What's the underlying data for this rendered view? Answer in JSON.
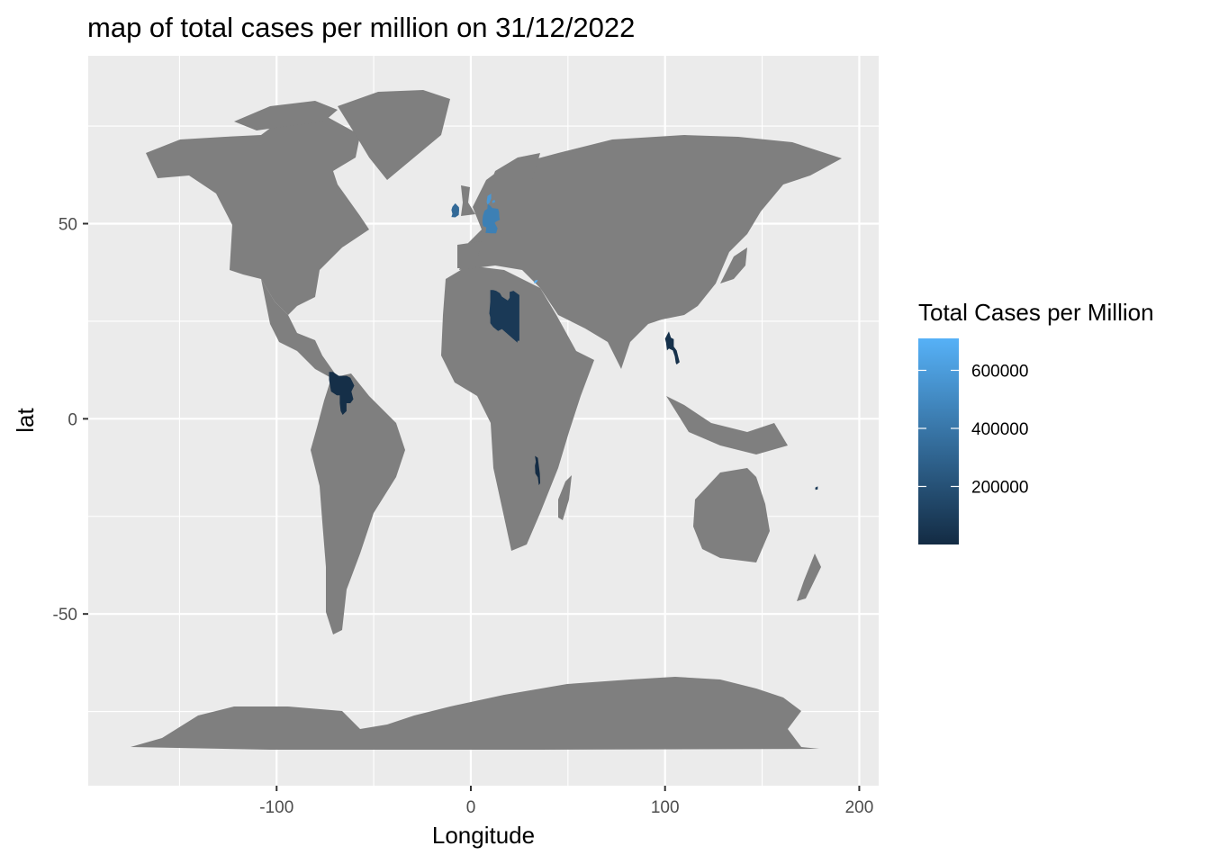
{
  "chart_data": {
    "type": "map",
    "title": "map of total cases per million on 31/12/2022",
    "xlabel": "Longitude",
    "ylabel": "lat",
    "xlim": [
      -197,
      210
    ],
    "ylim": [
      -94,
      93
    ],
    "x_ticks": [
      -100,
      0,
      100,
      200
    ],
    "x_tick_labels": [
      "-100",
      "0",
      "100",
      "200"
    ],
    "y_ticks": [
      50,
      0,
      -50
    ],
    "y_tick_labels": [
      "50",
      "0",
      "-50"
    ],
    "x_minor": [
      -150,
      -50,
      50,
      150
    ],
    "y_minor": [
      75,
      25,
      -25,
      -75
    ],
    "grid": true,
    "panel_background": "#ebebeb",
    "land_color": "#7f7f7f",
    "na_color": "#7f7f7f",
    "legend": {
      "title": "Total Cases per Million",
      "position": "right",
      "color_low": "#132b43",
      "color_high": "#56b1f7",
      "range": [
        0,
        710000
      ],
      "breaks": [
        600000,
        400000,
        200000
      ],
      "break_labels": [
        "600000",
        "400000",
        "200000"
      ]
    },
    "highlighted_regions": [
      {
        "name": "Venezuela",
        "value": 19000,
        "lon_lat": [
          [
            -73,
            12
          ],
          [
            -71,
            12
          ],
          [
            -68,
            11
          ],
          [
            -64,
            11
          ],
          [
            -62,
            10.5
          ],
          [
            -61,
            9.5
          ],
          [
            -60,
            8.5
          ],
          [
            -61.5,
            7
          ],
          [
            -61,
            6
          ],
          [
            -60.5,
            5
          ],
          [
            -62,
            4
          ],
          [
            -64,
            4
          ],
          [
            -64,
            2
          ],
          [
            -66,
            1
          ],
          [
            -67,
            2
          ],
          [
            -67.5,
            4
          ],
          [
            -67.5,
            6
          ],
          [
            -69,
            6
          ],
          [
            -72,
            7
          ],
          [
            -72.5,
            8.5
          ],
          [
            -73,
            10
          ]
        ]
      },
      {
        "name": "Libya",
        "value": 73000,
        "lon_lat": [
          [
            10,
            33
          ],
          [
            11.5,
            33
          ],
          [
            13,
            32.8
          ],
          [
            15,
            32.2
          ],
          [
            16,
            31.3
          ],
          [
            19,
            30.3
          ],
          [
            20,
            31
          ],
          [
            20,
            32.5
          ],
          [
            22,
            32.8
          ],
          [
            25,
            31.7
          ],
          [
            25,
            22
          ],
          [
            25,
            20
          ],
          [
            24,
            20
          ],
          [
            24,
            19.5
          ],
          [
            16,
            23
          ],
          [
            14,
            22.5
          ],
          [
            11.5,
            23.5
          ],
          [
            10,
            24.5
          ],
          [
            10,
            26
          ],
          [
            9.5,
            27
          ],
          [
            10,
            30
          ]
        ]
      },
      {
        "name": "Malawi",
        "value": 5500,
        "lon_lat": [
          [
            33,
            -9.5
          ],
          [
            34.5,
            -10
          ],
          [
            35,
            -12
          ],
          [
            35.5,
            -14
          ],
          [
            35.7,
            -16.5
          ],
          [
            35,
            -17
          ],
          [
            34.5,
            -15
          ],
          [
            33.2,
            -14
          ],
          [
            33,
            -12
          ],
          [
            33.5,
            -11
          ]
        ]
      },
      {
        "name": "Laos",
        "value": 30000,
        "lon_lat": [
          [
            101,
            21.5
          ],
          [
            102,
            22.4
          ],
          [
            103,
            20.8
          ],
          [
            104.5,
            20.4
          ],
          [
            104.5,
            18.5
          ],
          [
            106,
            17.5
          ],
          [
            107,
            15.5
          ],
          [
            107.5,
            14.5
          ],
          [
            106,
            13.9
          ],
          [
            105.5,
            14.3
          ],
          [
            105,
            16
          ],
          [
            104,
            17.5
          ],
          [
            102,
            18
          ],
          [
            101,
            17.5
          ],
          [
            100.5,
            19.5
          ],
          [
            100,
            20.5
          ]
        ]
      },
      {
        "name": "Ireland",
        "value": 330000,
        "lon_lat": [
          [
            -10,
            51.7
          ],
          [
            -8,
            51.6
          ],
          [
            -6.2,
            52.2
          ],
          [
            -6,
            53.5
          ],
          [
            -6.1,
            54.2
          ],
          [
            -8,
            55.2
          ],
          [
            -9.5,
            54.3
          ],
          [
            -10,
            53.5
          ],
          [
            -9.5,
            52.5
          ]
        ]
      },
      {
        "name": "Germany",
        "value": 450000,
        "lon_lat": [
          [
            6,
            51
          ],
          [
            6.2,
            52
          ],
          [
            7,
            53.3
          ],
          [
            8.5,
            53.8
          ],
          [
            8.7,
            55
          ],
          [
            10,
            54.6
          ],
          [
            11,
            54
          ],
          [
            14,
            53.8
          ],
          [
            14.5,
            53
          ],
          [
            14.7,
            51.5
          ],
          [
            15,
            51
          ],
          [
            13,
            50.5
          ],
          [
            12.3,
            50.2
          ],
          [
            13.8,
            48.8
          ],
          [
            13,
            47.5
          ],
          [
            10.5,
            47.5
          ],
          [
            8.5,
            47.6
          ],
          [
            7.6,
            47.6
          ],
          [
            8,
            49
          ],
          [
            6.3,
            49.4
          ],
          [
            6,
            50.2
          ]
        ]
      },
      {
        "name": "Denmark",
        "value": 580000,
        "lon_lat": [
          [
            8.1,
            55.5
          ],
          [
            8.6,
            57.1
          ],
          [
            10.5,
            57.7
          ],
          [
            10.5,
            56.5
          ],
          [
            9.6,
            55.3
          ],
          [
            8.6,
            54.9
          ]
        ]
      },
      {
        "name": "Sjaelland",
        "value": 580000,
        "lon_lat": [
          [
            11.1,
            55.2
          ],
          [
            12.6,
            55.6
          ],
          [
            12.2,
            56.1
          ],
          [
            11.1,
            55.8
          ]
        ]
      },
      {
        "name": "Cyprus",
        "value": 700000,
        "lon_lat": [
          [
            32.3,
            34.7
          ],
          [
            33.8,
            34.9
          ],
          [
            34.5,
            35.6
          ],
          [
            33,
            35.4
          ]
        ]
      },
      {
        "name": "Fiji",
        "value": 76000,
        "lon_lat": [
          [
            177.3,
            -17.6
          ],
          [
            178.6,
            -17.3
          ],
          [
            178.6,
            -18.1
          ],
          [
            177.4,
            -18.2
          ]
        ]
      }
    ]
  }
}
